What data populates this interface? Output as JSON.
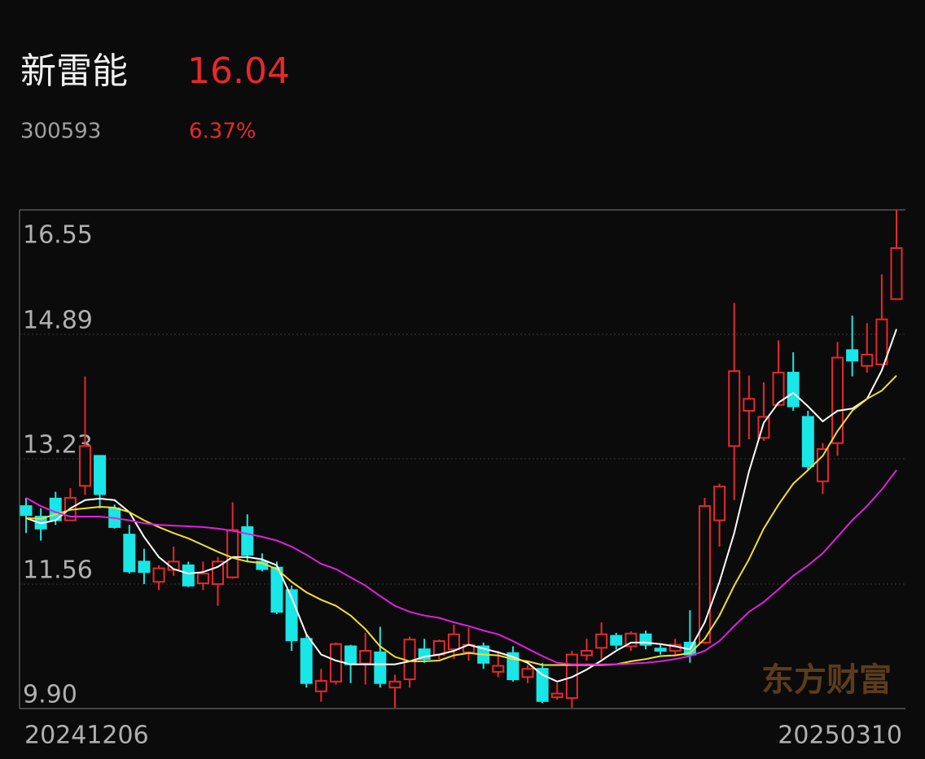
{
  "header": {
    "name": "新雷能",
    "price": "16.04",
    "code": "300593",
    "change": "6.37%"
  },
  "chart_data": {
    "type": "candlestick",
    "categories": [
      "20241206",
      null,
      null,
      null,
      null,
      null,
      null,
      null,
      null,
      null,
      null,
      null,
      null,
      null,
      null,
      null,
      null,
      null,
      null,
      null,
      null,
      null,
      null,
      null,
      null,
      null,
      null,
      null,
      null,
      null,
      null,
      null,
      null,
      null,
      null,
      null,
      null,
      null,
      null,
      null,
      null,
      null,
      null,
      null,
      null,
      null,
      null,
      null,
      null,
      null,
      null,
      null,
      null,
      null,
      null,
      null,
      null,
      null,
      null,
      "20250310"
    ],
    "open": [
      12.6,
      12.46,
      12.7,
      12.41,
      12.87,
      13.27,
      12.57,
      12.22,
      11.86,
      11.59,
      11.75,
      11.81,
      11.57,
      11.56,
      11.65,
      12.32,
      11.86,
      11.78,
      11.48,
      10.83,
      10.13,
      10.26,
      10.73,
      10.5,
      10.65,
      10.18,
      10.29,
      10.69,
      10.62,
      10.69,
      10.65,
      10.73,
      10.39,
      10.64,
      10.32,
      10.43,
      10.05,
      10.04,
      10.61,
      10.71,
      10.87,
      10.73,
      10.89,
      10.7,
      10.67,
      10.78,
      10.78,
      12.41,
      13.4,
      13.87,
      13.51,
      13.95,
      14.38,
      13.79,
      12.93,
      13.44,
      14.68,
      14.47,
      14.49,
      15.36
    ],
    "high": [
      12.71,
      12.57,
      12.79,
      12.84,
      14.33,
      13.27,
      12.62,
      12.35,
      12.03,
      11.81,
      12.06,
      11.86,
      11.86,
      11.92,
      12.65,
      12.49,
      11.97,
      11.86,
      11.54,
      10.89,
      10.43,
      10.78,
      10.75,
      10.91,
      10.99,
      10.35,
      10.86,
      10.83,
      10.82,
      11.02,
      10.98,
      10.78,
      10.67,
      10.73,
      10.48,
      10.51,
      10.24,
      10.67,
      10.83,
      11.05,
      10.91,
      10.93,
      10.94,
      10.75,
      10.83,
      11.21,
      12.71,
      12.9,
      15.31,
      14.34,
      14.25,
      14.81,
      14.65,
      13.87,
      13.44,
      14.79,
      15.14,
      15.04,
      15.69,
      16.55
    ],
    "low": [
      12.24,
      12.14,
      12.35,
      12.41,
      12.75,
      12.57,
      12.3,
      11.7,
      11.56,
      11.48,
      11.67,
      11.52,
      11.48,
      11.27,
      11.63,
      11.86,
      11.73,
      11.16,
      10.67,
      10.18,
      9.99,
      10.22,
      10.24,
      10.22,
      10.18,
      9.91,
      10.18,
      10.51,
      10.56,
      10.56,
      10.54,
      10.43,
      10.32,
      10.26,
      10.24,
      9.97,
      10.02,
      9.91,
      10.54,
      10.56,
      10.69,
      10.67,
      10.69,
      10.62,
      10.62,
      10.51,
      10.76,
      12.06,
      12.68,
      13.49,
      13.47,
      13.93,
      13.87,
      13.08,
      12.76,
      13.27,
      14.33,
      14.38,
      14.47,
      15.36
    ],
    "close": [
      12.48,
      12.3,
      12.41,
      12.71,
      13.4,
      12.76,
      12.32,
      11.73,
      11.72,
      11.77,
      11.86,
      11.54,
      11.7,
      11.86,
      12.28,
      11.95,
      11.76,
      11.19,
      10.81,
      10.24,
      10.27,
      10.76,
      10.49,
      10.67,
      10.24,
      10.26,
      10.82,
      10.56,
      10.8,
      10.89,
      10.75,
      10.51,
      10.47,
      10.29,
      10.43,
      10.0,
      10.1,
      10.62,
      10.67,
      10.89,
      10.75,
      10.9,
      10.75,
      10.67,
      10.75,
      10.62,
      12.6,
      12.86,
      14.4,
      14.03,
      13.79,
      14.38,
      13.93,
      13.13,
      13.36,
      14.58,
      14.54,
      14.62,
      15.09,
      16.04
    ],
    "up_color": "#e8282c",
    "down_color": "#19e6e6",
    "lines": [
      {
        "color": "#ffffff",
        "values": [
          12.44,
          12.37,
          12.41,
          12.57,
          12.68,
          12.7,
          12.68,
          12.52,
          12.19,
          11.92,
          11.76,
          11.7,
          11.72,
          11.79,
          11.92,
          11.92,
          11.89,
          11.81,
          11.38,
          10.89,
          10.62,
          10.54,
          10.49,
          10.49,
          10.49,
          10.49,
          10.53,
          10.59,
          10.62,
          10.67,
          10.75,
          10.7,
          10.65,
          10.59,
          10.51,
          10.35,
          10.26,
          10.32,
          10.42,
          10.54,
          10.67,
          10.78,
          10.78,
          10.76,
          10.73,
          10.69,
          11.05,
          11.59,
          12.24,
          13.06,
          13.71,
          13.98,
          14.11,
          13.93,
          13.73,
          13.87,
          13.9,
          14.03,
          14.41,
          14.96
        ]
      },
      {
        "color": "#f2e02c",
        "values": [
          12.44,
          12.43,
          12.49,
          12.55,
          12.57,
          12.59,
          12.58,
          12.52,
          12.41,
          12.32,
          12.24,
          12.17,
          12.08,
          11.99,
          11.91,
          11.86,
          11.84,
          11.76,
          11.59,
          11.45,
          11.35,
          11.27,
          11.14,
          10.96,
          10.73,
          10.59,
          10.53,
          10.53,
          10.54,
          10.61,
          10.64,
          10.62,
          10.61,
          10.56,
          10.53,
          10.48,
          10.48,
          10.48,
          10.48,
          10.48,
          10.49,
          10.53,
          10.56,
          10.6,
          10.61,
          10.64,
          10.83,
          11.14,
          11.54,
          11.89,
          12.3,
          12.62,
          12.9,
          13.08,
          13.27,
          13.6,
          13.87,
          14.03,
          14.14,
          14.34
        ]
      },
      {
        "color": "#e020e0",
        "values": [
          12.71,
          12.6,
          12.52,
          12.46,
          12.46,
          12.46,
          12.44,
          12.41,
          12.37,
          12.35,
          12.34,
          12.33,
          12.32,
          12.3,
          12.27,
          12.23,
          12.19,
          12.14,
          12.06,
          11.95,
          11.83,
          11.76,
          11.65,
          11.54,
          11.4,
          11.27,
          11.19,
          11.14,
          11.11,
          11.05,
          11.0,
          10.94,
          10.89,
          10.8,
          10.7,
          10.6,
          10.51,
          10.49,
          10.49,
          10.49,
          10.49,
          10.5,
          10.51,
          10.53,
          10.56,
          10.6,
          10.67,
          10.8,
          11.0,
          11.19,
          11.32,
          11.49,
          11.67,
          11.81,
          11.97,
          12.19,
          12.41,
          12.6,
          12.82,
          13.08
        ]
      }
    ],
    "ylim": [
      9.9,
      16.55
    ],
    "yticks": [
      16.55,
      14.89,
      13.23,
      11.56,
      {
        "value": 9.9,
        "label": "9.90"
      }
    ],
    "grid": true,
    "watermark": "东方财富"
  }
}
